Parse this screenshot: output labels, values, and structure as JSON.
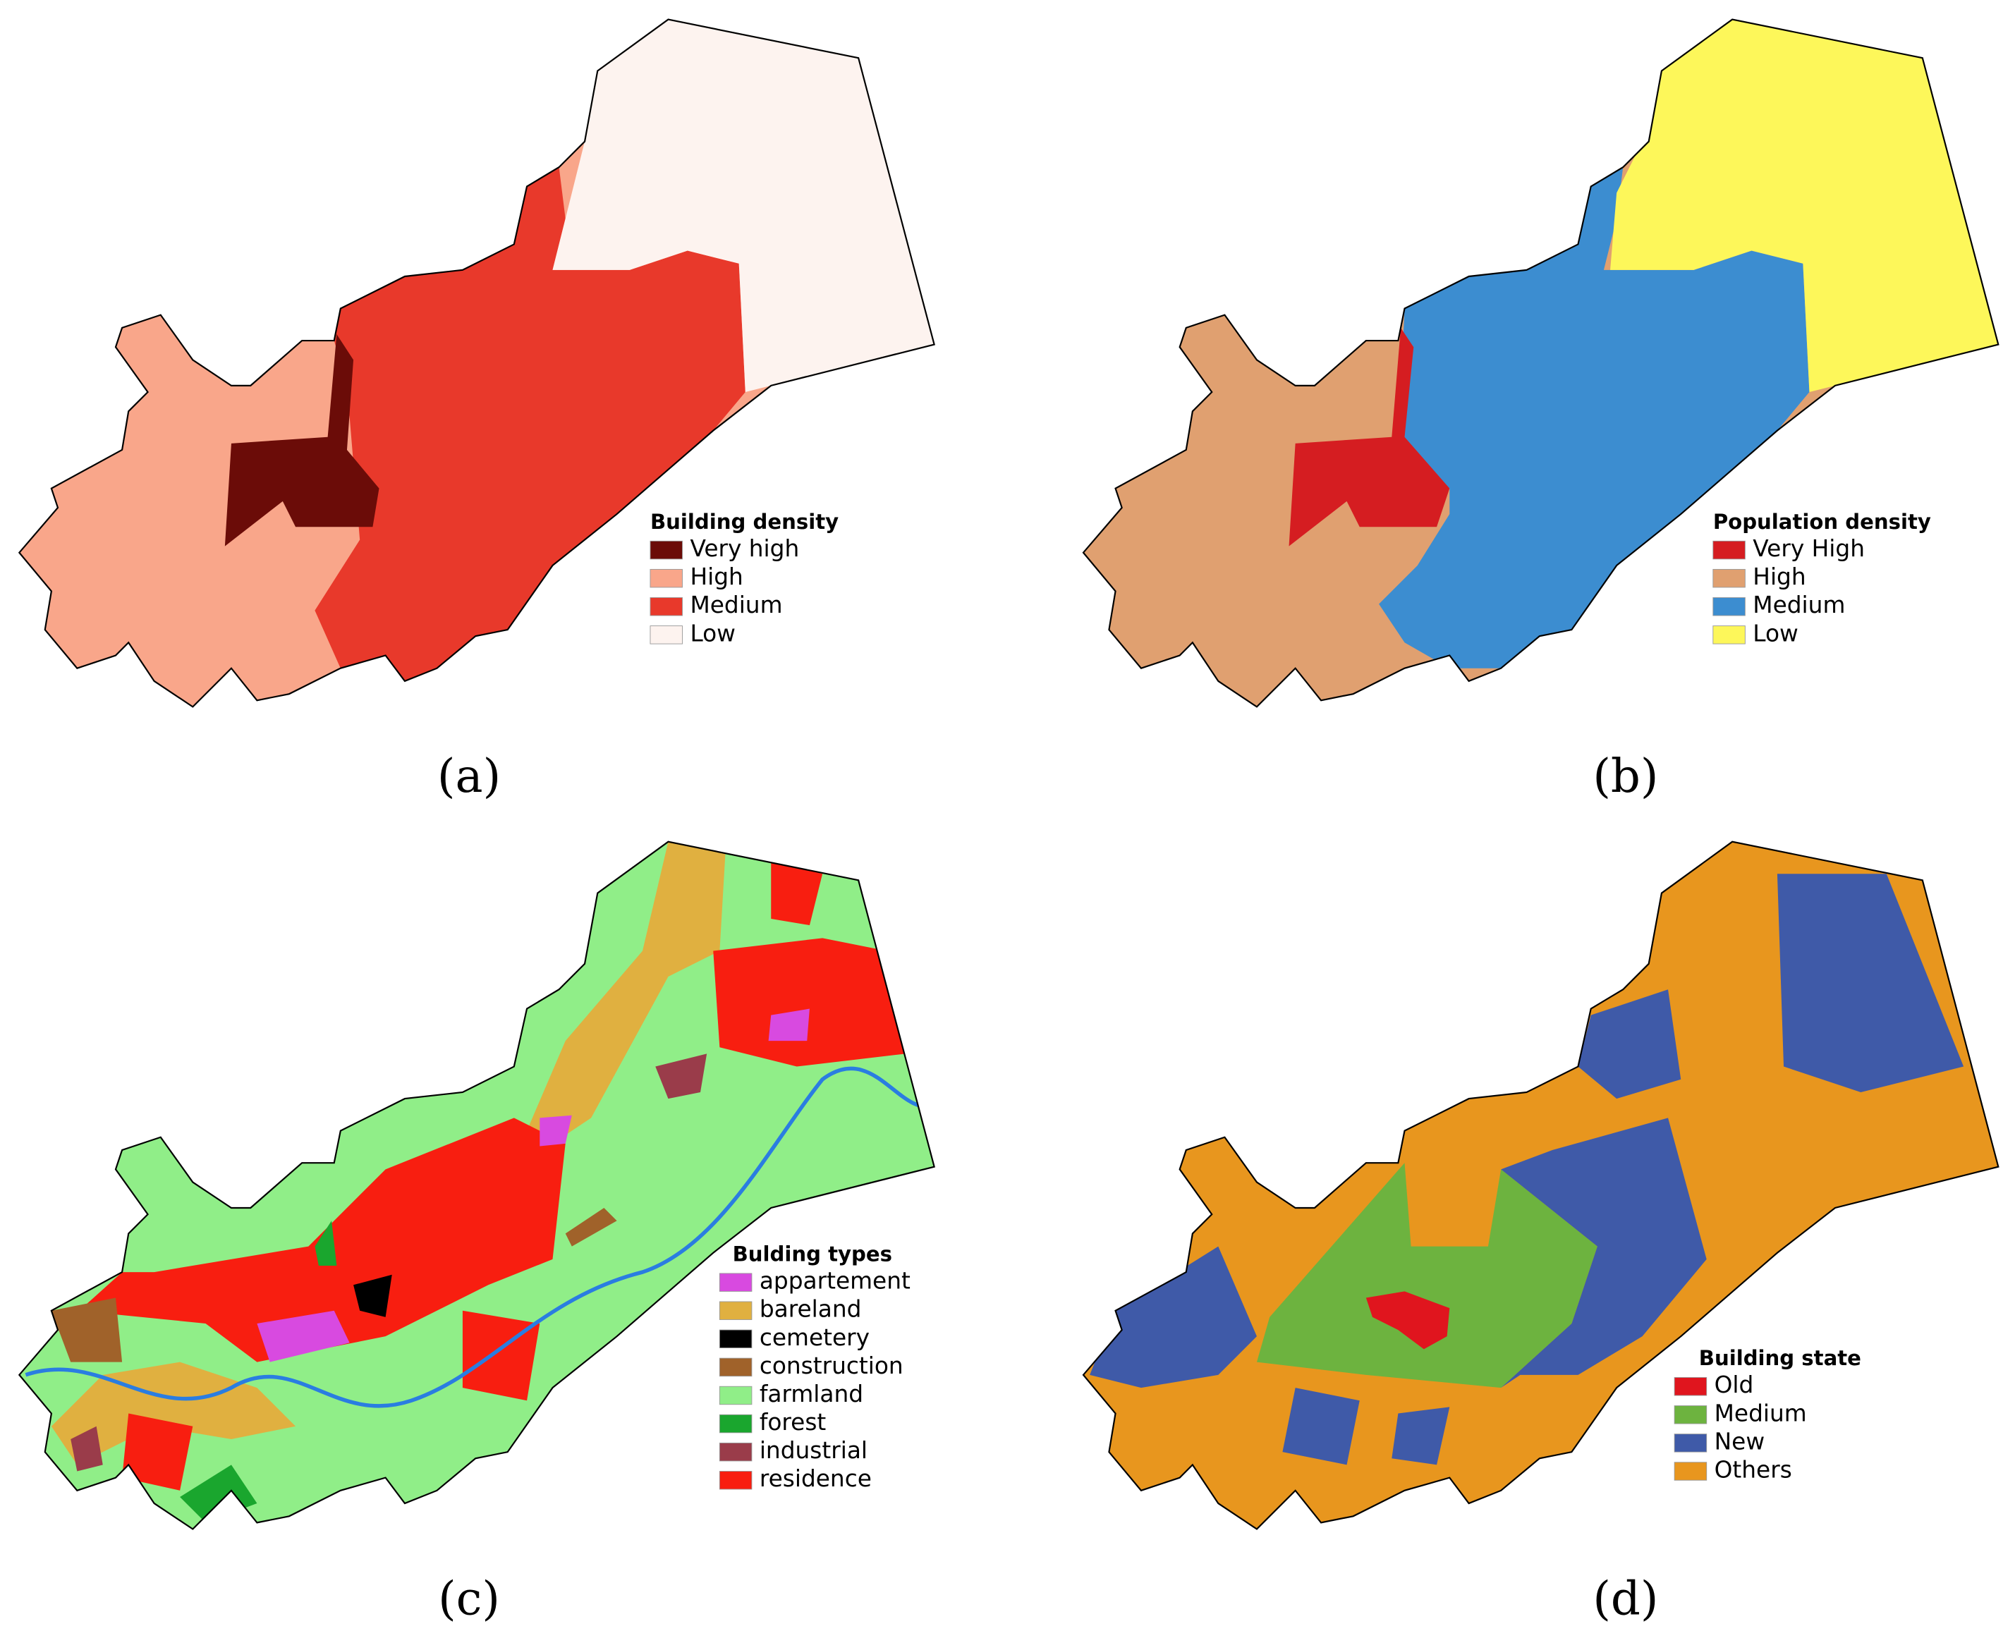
{
  "panels": [
    {
      "caption": "(a)",
      "legend_title": "Building density",
      "items": [
        {
          "label": "Very high",
          "color": "#6b0c08"
        },
        {
          "label": "High",
          "color": "#f9a68a"
        },
        {
          "label": "Medium",
          "color": "#e8392b"
        },
        {
          "label": "Low",
          "color": "#fdf3ef"
        }
      ]
    },
    {
      "caption": "(b)",
      "legend_title": "Population density",
      "items": [
        {
          "label": "Very High",
          "color": "#d51d21"
        },
        {
          "label": "High",
          "color": "#e0a070"
        },
        {
          "label": "Medium",
          "color": "#3c8dd0"
        },
        {
          "label": "Low",
          "color": "#fdf75a"
        }
      ]
    },
    {
      "caption": "(c)",
      "legend_title": "Bulding types",
      "items": [
        {
          "label": "appartement",
          "color": "#d84ae0"
        },
        {
          "label": "bareland",
          "color": "#e0b040"
        },
        {
          "label": "cemetery",
          "color": "#000000"
        },
        {
          "label": "construction",
          "color": "#a0622a"
        },
        {
          "label": "farmland",
          "color": "#90ee88"
        },
        {
          "label": "forest",
          "color": "#1aa62e"
        },
        {
          "label": "industrial",
          "color": "#9a3c4a"
        },
        {
          "label": "residence",
          "color": "#f81e10"
        }
      ]
    },
    {
      "caption": "(d)",
      "legend_title": "Building state",
      "items": [
        {
          "label": "Old",
          "color": "#e0151e"
        },
        {
          "label": "Medium",
          "color": "#6db33f"
        },
        {
          "label": "New",
          "color": "#3f5aa8"
        },
        {
          "label": "Others",
          "color": "#e8961e"
        }
      ]
    }
  ]
}
